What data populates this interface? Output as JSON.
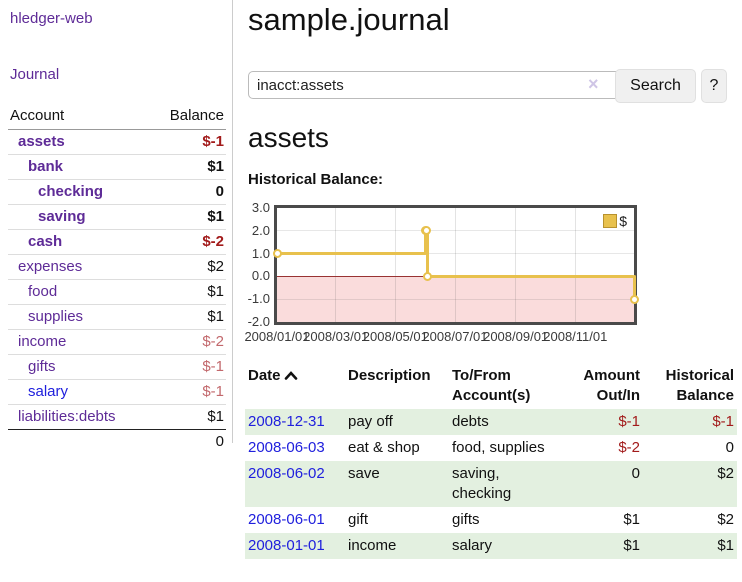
{
  "colors": {
    "accent_purple": "#5E2B97",
    "link_blue": "#2020DD",
    "negative_strong": "#A21B1B",
    "negative_soft": "#C2686C",
    "row_green": "#E3F0E0",
    "chart_line": "#E8C14D",
    "chart_negative_fill": "#FADCDC",
    "chart_zero_line": "#993333"
  },
  "sidebar": {
    "app_title": "hledger-web",
    "journal_link": "Journal",
    "accounts_table": {
      "headers": [
        "Account",
        "Balance"
      ],
      "rows": [
        {
          "name": "assets",
          "indent": 0,
          "bold": true,
          "balance": "$-1",
          "balance_style": "neg-strong",
          "link_style": "purple"
        },
        {
          "name": "bank",
          "indent": 1,
          "bold": true,
          "balance": "$1",
          "balance_style": "pos",
          "link_style": "purple"
        },
        {
          "name": "checking",
          "indent": 2,
          "bold": true,
          "balance": "0",
          "balance_style": "pos",
          "link_style": "purple"
        },
        {
          "name": "saving",
          "indent": 2,
          "bold": true,
          "balance": "$1",
          "balance_style": "pos",
          "link_style": "purple"
        },
        {
          "name": "cash",
          "indent": 1,
          "bold": true,
          "balance": "$-2",
          "balance_style": "neg-strong",
          "link_style": "purple"
        },
        {
          "name": "expenses",
          "indent": 0,
          "bold": false,
          "balance": "$2",
          "balance_style": "pos",
          "link_style": "purple"
        },
        {
          "name": "food",
          "indent": 1,
          "bold": false,
          "balance": "$1",
          "balance_style": "pos",
          "link_style": "purple"
        },
        {
          "name": "supplies",
          "indent": 1,
          "bold": false,
          "balance": "$1",
          "balance_style": "pos",
          "link_style": "purple"
        },
        {
          "name": "income",
          "indent": 0,
          "bold": false,
          "balance": "$-2",
          "balance_style": "neg-soft",
          "link_style": "purple"
        },
        {
          "name": "gifts",
          "indent": 1,
          "bold": false,
          "balance": "$-1",
          "balance_style": "neg-soft",
          "link_style": "purple"
        },
        {
          "name": "salary",
          "indent": 1,
          "bold": false,
          "balance": "$-1",
          "balance_style": "neg-soft",
          "link_style": "blue"
        },
        {
          "name": "liabilities:debts",
          "indent": 0,
          "bold": false,
          "balance": "$1",
          "balance_style": "pos",
          "link_style": "purple"
        }
      ],
      "total": "0"
    }
  },
  "header": {
    "title": "sample.journal"
  },
  "search": {
    "value": "inacct:assets",
    "clear_icon": "×",
    "button_label": "Search",
    "help_label": "?"
  },
  "account_page": {
    "heading": "assets",
    "chart_title": "Historical Balance:"
  },
  "chart_data": {
    "type": "line",
    "step": true,
    "title": "Historical Balance:",
    "x_range": [
      "2008-01-01",
      "2008-12-31"
    ],
    "ylim": [
      -2.0,
      3.0
    ],
    "y_tick_labels": [
      "3.0",
      "2.0",
      "1.0",
      "0.0",
      "-1.0",
      "-2.0"
    ],
    "y_tick_values": [
      3,
      2,
      1,
      0,
      -1,
      -2
    ],
    "x_tick_labels": [
      "2008/01/01",
      "2008/03/01",
      "2008/05/01",
      "2008/07/01",
      "2008/09/01",
      "2008/11/01"
    ],
    "x_tick_dates": [
      "2008-01-01",
      "2008-03-01",
      "2008-05-01",
      "2008-07-01",
      "2008-09-01",
      "2008-11-01"
    ],
    "grid": true,
    "negative_region_shaded": true,
    "legend": {
      "position": "top-right",
      "entries": [
        {
          "label": "$"
        }
      ]
    },
    "series": [
      {
        "name": "$",
        "points": [
          [
            "2008-01-01",
            1
          ],
          [
            "2008-06-01",
            2
          ],
          [
            "2008-06-02",
            2
          ],
          [
            "2008-06-03",
            0
          ],
          [
            "2008-12-31",
            -1
          ]
        ]
      }
    ]
  },
  "register": {
    "headers": {
      "date": "Date",
      "description": "Description",
      "accounts": "To/From Account(s)",
      "amount": "Amount Out/In",
      "balance": "Historical Balance"
    },
    "sort_icon": "chevron-up",
    "rows": [
      {
        "date": "2008-12-31",
        "description": "pay off",
        "accounts": "debts",
        "amount": "$-1",
        "amount_negative": true,
        "balance": "$-1",
        "balance_negative": true
      },
      {
        "date": "2008-06-03",
        "description": "eat & shop",
        "accounts": "food, supplies",
        "amount": "$-2",
        "amount_negative": true,
        "balance": "0",
        "balance_negative": false
      },
      {
        "date": "2008-06-02",
        "description": "save",
        "accounts": "saving, checking",
        "amount": "0",
        "amount_negative": false,
        "balance": "$2",
        "balance_negative": false
      },
      {
        "date": "2008-06-01",
        "description": "gift",
        "accounts": "gifts",
        "amount": "$1",
        "amount_negative": false,
        "balance": "$2",
        "balance_negative": false
      },
      {
        "date": "2008-01-01",
        "description": "income",
        "accounts": "salary",
        "amount": "$1",
        "amount_negative": false,
        "balance": "$1",
        "balance_negative": false
      }
    ]
  }
}
